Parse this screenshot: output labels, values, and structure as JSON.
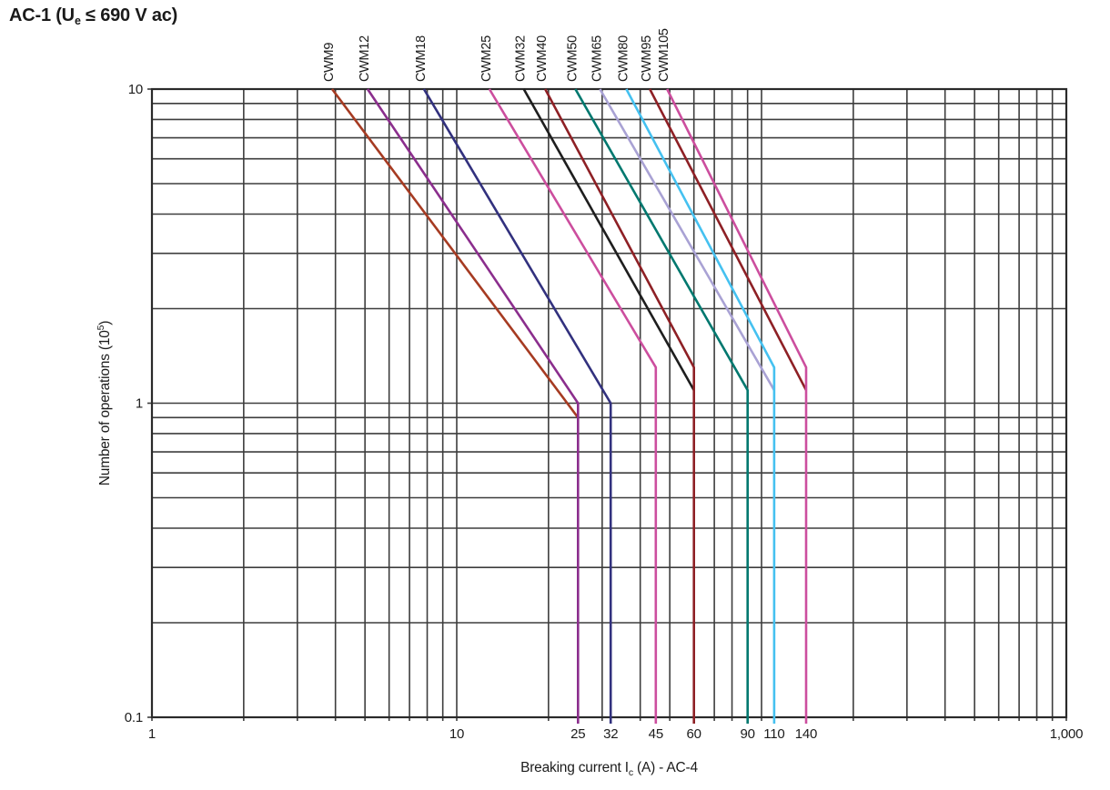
{
  "title": "AC-1 (Ue ≤ 690 V ac)",
  "title_parts": [
    {
      "t": "AC-1 (U",
      "style": "normal"
    },
    {
      "t": "e",
      "style": "sub"
    },
    {
      "t": " ≤ 690 V ac)",
      "style": "normal"
    }
  ],
  "chart_data": {
    "type": "line",
    "title": "AC-1 (Ue ≤ 690 V ac)",
    "xlabel": "Breaking current Ic (A) - AC-4",
    "ylabel": "Number of operations (10⁵)",
    "xlabel_parts": [
      {
        "t": "Breaking current I",
        "style": "normal"
      },
      {
        "t": "c",
        "style": "sub"
      },
      {
        "t": " (A) - AC-4",
        "style": "normal"
      }
    ],
    "ylabel_parts": [
      {
        "t": "Number of operations (10",
        "style": "normal"
      },
      {
        "t": "5",
        "style": "sup"
      },
      {
        "t": ")",
        "style": "normal"
      }
    ],
    "x_scale": "log",
    "y_scale": "log",
    "xlim": [
      1,
      1000
    ],
    "ylim": [
      0.1,
      10
    ],
    "grid": "on",
    "grid_color": "#3d3d3d",
    "border_color": "#2a2a2a",
    "x_decade_ticks": [
      {
        "v": 1,
        "label": "1"
      },
      {
        "v": 10,
        "label": "10"
      },
      {
        "v": 1000,
        "label": "1,000"
      }
    ],
    "x_value_ticks": [
      {
        "v": 25,
        "label": "25"
      },
      {
        "v": 32,
        "label": "32"
      },
      {
        "v": 45,
        "label": "45"
      },
      {
        "v": 60,
        "label": "60"
      },
      {
        "v": 90,
        "label": "90"
      },
      {
        "v": 110,
        "label": "110"
      },
      {
        "v": 140,
        "label": "140"
      }
    ],
    "y_ticks": [
      {
        "v": 10,
        "label": "10"
      },
      {
        "v": 1,
        "label": "1"
      },
      {
        "v": 0.1,
        "label": "0.1"
      }
    ],
    "series_note": "Each curve: straight segment on log-log axes from (start_current, 10x10^5 ops) to (end_current, end_ops); vertical_drop=true means it then falls vertically to 0.1 at end_current.",
    "series": [
      {
        "name": "CWM9",
        "color": "#A63B22",
        "start_current": 3.9,
        "end_current": 25,
        "end_ops": 0.9,
        "vertical_drop": false
      },
      {
        "name": "CWM12",
        "color": "#8B2E8D",
        "start_current": 5.1,
        "end_current": 25,
        "end_ops": 1.0,
        "vertical_drop": true
      },
      {
        "name": "CWM18",
        "color": "#32317E",
        "start_current": 7.8,
        "end_current": 32,
        "end_ops": 1.0,
        "vertical_drop": true
      },
      {
        "name": "CWM25",
        "color": "#CC4E9E",
        "start_current": 12.8,
        "end_current": 45,
        "end_ops": 1.3,
        "vertical_drop": true
      },
      {
        "name": "CWM32",
        "color": "#1E1E1E",
        "start_current": 16.6,
        "end_current": 60,
        "end_ops": 1.1,
        "vertical_drop": false
      },
      {
        "name": "CWM40",
        "color": "#8E2025",
        "start_current": 19.5,
        "end_current": 60,
        "end_ops": 1.3,
        "vertical_drop": true
      },
      {
        "name": "CWM50",
        "color": "#00786F",
        "start_current": 24.5,
        "end_current": 90,
        "end_ops": 1.1,
        "vertical_drop": true
      },
      {
        "name": "CWM65",
        "color": "#A9A2D4",
        "start_current": 29.5,
        "end_current": 110,
        "end_ops": 1.1,
        "vertical_drop": false
      },
      {
        "name": "CWM80",
        "color": "#45C1F0",
        "start_current": 36,
        "end_current": 110,
        "end_ops": 1.3,
        "vertical_drop": true
      },
      {
        "name": "CWM95",
        "color": "#8E2025",
        "start_current": 43,
        "end_current": 140,
        "end_ops": 1.1,
        "vertical_drop": false
      },
      {
        "name": "CWM105",
        "color": "#CC4E9E",
        "start_current": 49,
        "end_current": 140,
        "end_ops": 1.3,
        "vertical_drop": true
      }
    ]
  }
}
